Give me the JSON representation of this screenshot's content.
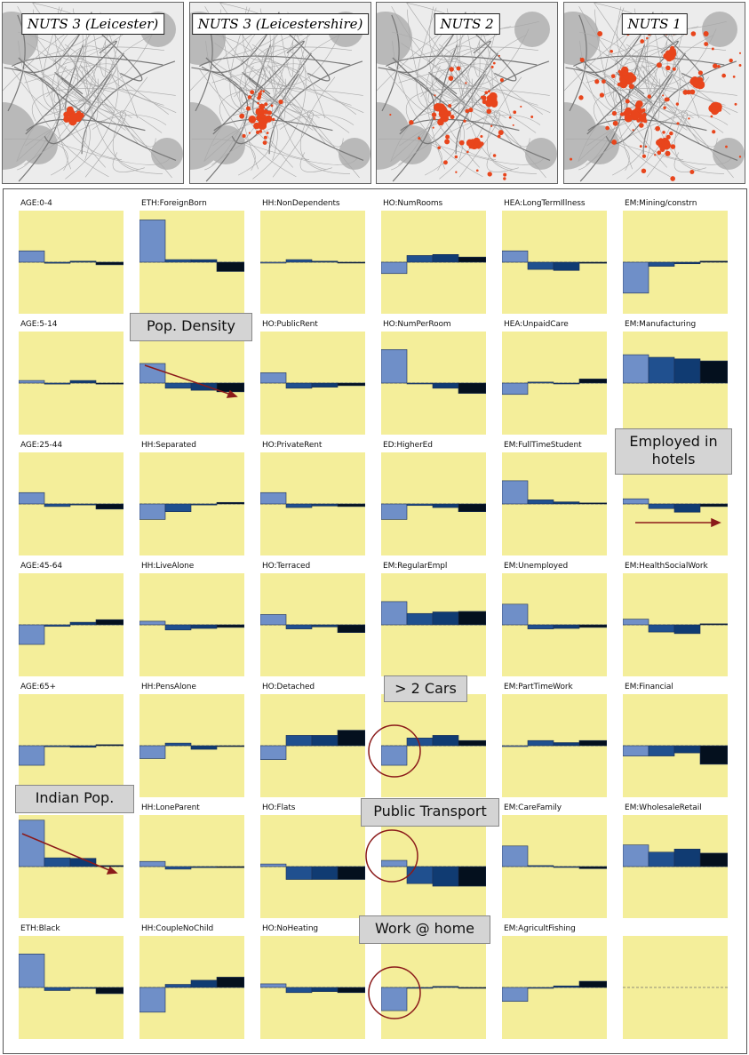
{
  "maps": [
    {
      "title": "NUTS 3 (Leicester)"
    },
    {
      "title": "NUTS 3 (Leicestershire)"
    },
    {
      "title": "NUTS 2"
    },
    {
      "title": "NUTS 1"
    }
  ],
  "callouts": {
    "pop_density": "Pop. Density",
    "employed_hotels": "Employed in hotels",
    "cars": "> 2 Cars",
    "indian_pop": "Indian Pop.",
    "public_transport": "Public Transport",
    "work_home": "Work @ home"
  },
  "colors": {
    "background": "#f4ee9a",
    "bar_levels": [
      "#6f8fc8",
      "#20508f",
      "#103b72",
      "#04101e"
    ]
  },
  "chart_data": {
    "type": "bar",
    "levels": [
      "NUTS 3 (Leicester)",
      "NUTS 3 (Leicestershire)",
      "NUTS 2",
      "NUTS 1"
    ],
    "ylim": [
      -1,
      1
    ],
    "panels": [
      {
        "label": "AGE:0-4",
        "values": [
          0.22,
          -0.02,
          0.02,
          -0.05
        ]
      },
      {
        "label": "ETH:ForeignBorn",
        "values": [
          0.82,
          0.05,
          0.05,
          -0.18
        ]
      },
      {
        "label": "HH:NonDependents",
        "values": [
          0.0,
          0.05,
          0.02,
          0.0
        ]
      },
      {
        "label": "HO:NumRooms",
        "values": [
          -0.22,
          0.13,
          0.15,
          0.1
        ]
      },
      {
        "label": "HEA:LongTermIllness",
        "values": [
          0.22,
          -0.14,
          -0.16,
          -0.02
        ]
      },
      {
        "label": "EM:Mining/constrn",
        "values": [
          -0.6,
          -0.08,
          -0.03,
          0.02
        ]
      },
      {
        "label": "AGE:5-14",
        "values": [
          0.05,
          -0.02,
          0.05,
          -0.02
        ]
      },
      {
        "label": "",
        "values": [
          0.38,
          -0.1,
          -0.14,
          -0.17
        ]
      },
      {
        "label": "HO:PublicRent",
        "values": [
          0.2,
          -0.1,
          -0.08,
          -0.05
        ]
      },
      {
        "label": "HO:NumPerRoom",
        "values": [
          0.65,
          0.0,
          -0.1,
          -0.2
        ]
      },
      {
        "label": "HEA:UnpaidCare",
        "values": [
          -0.22,
          0.02,
          0.0,
          0.08
        ]
      },
      {
        "label": "EM:Manufacturing",
        "values": [
          0.55,
          0.5,
          0.47,
          0.43
        ]
      },
      {
        "label": "AGE:25-44",
        "values": [
          0.22,
          -0.05,
          -0.02,
          -0.1
        ]
      },
      {
        "label": "HH:Separated",
        "values": [
          -0.3,
          -0.15,
          -0.02,
          0.03
        ]
      },
      {
        "label": "HO:PrivateRent",
        "values": [
          0.22,
          -0.07,
          -0.04,
          -0.05
        ]
      },
      {
        "label": "ED:HigherEd",
        "values": [
          -0.3,
          -0.03,
          -0.07,
          -0.15
        ]
      },
      {
        "label": "EM:FullTimeStudent",
        "values": [
          0.45,
          0.08,
          0.04,
          0.02
        ]
      },
      {
        "label": "",
        "values": [
          0.1,
          -0.09,
          -0.16,
          -0.05
        ]
      },
      {
        "label": "AGE:45-64",
        "values": [
          -0.38,
          -0.03,
          0.05,
          0.1
        ]
      },
      {
        "label": "HH:LiveAlone",
        "values": [
          0.07,
          -0.1,
          -0.07,
          -0.05
        ]
      },
      {
        "label": "HO:Terraced",
        "values": [
          0.2,
          -0.08,
          -0.04,
          -0.15
        ]
      },
      {
        "label": "EM:RegularEmpl",
        "values": [
          0.45,
          0.22,
          0.25,
          0.26
        ]
      },
      {
        "label": "EM:Unemployed",
        "values": [
          0.4,
          -0.08,
          -0.07,
          -0.05
        ]
      },
      {
        "label": "EM:HealthSocialWork",
        "values": [
          0.11,
          -0.14,
          -0.17,
          0.02
        ]
      },
      {
        "label": "AGE:65+",
        "values": [
          -0.38,
          -0.02,
          -0.03,
          0.02
        ]
      },
      {
        "label": "HH:PensAlone",
        "values": [
          -0.25,
          0.05,
          -0.07,
          0.0
        ]
      },
      {
        "label": "HO:Detached",
        "values": [
          -0.27,
          0.2,
          0.2,
          0.3
        ]
      },
      {
        "label": "",
        "values": [
          -0.38,
          0.15,
          0.2,
          0.1
        ]
      },
      {
        "label": "EM:PartTimeWork",
        "values": [
          0.0,
          0.1,
          0.06,
          0.1
        ]
      },
      {
        "label": "EM:Financial",
        "values": [
          -0.2,
          -0.2,
          -0.14,
          -0.36
        ]
      },
      {
        "label": "",
        "values": [
          0.9,
          0.17,
          0.16,
          0.02
        ]
      },
      {
        "label": "HH:LoneParent",
        "values": [
          0.1,
          -0.05,
          -0.02,
          -0.02
        ]
      },
      {
        "label": "HO:Flats",
        "values": [
          0.05,
          -0.25,
          -0.25,
          -0.25
        ]
      },
      {
        "label": "",
        "values": [
          0.12,
          -0.33,
          -0.38,
          -0.38
        ]
      },
      {
        "label": "EM:CareFamily",
        "values": [
          0.4,
          0.02,
          0.0,
          -0.04
        ]
      },
      {
        "label": "EM:WholesaleRetail",
        "values": [
          0.42,
          0.28,
          0.34,
          0.26
        ]
      },
      {
        "label": "ETH:Black",
        "values": [
          0.65,
          -0.06,
          -0.02,
          -0.12
        ]
      },
      {
        "label": "HH:CoupleNoChild",
        "values": [
          -0.48,
          0.06,
          0.14,
          0.2
        ]
      },
      {
        "label": "HO:NoHeating",
        "values": [
          0.07,
          -0.1,
          -0.08,
          -0.1
        ]
      },
      {
        "label": "",
        "values": [
          -0.45,
          0.0,
          0.02,
          -0.01
        ]
      },
      {
        "label": "EM:AgricultFishing",
        "values": [
          -0.27,
          0.0,
          0.03,
          0.12
        ]
      },
      {
        "label": "",
        "values": [
          0,
          0,
          0,
          0
        ],
        "blank": true
      }
    ]
  }
}
